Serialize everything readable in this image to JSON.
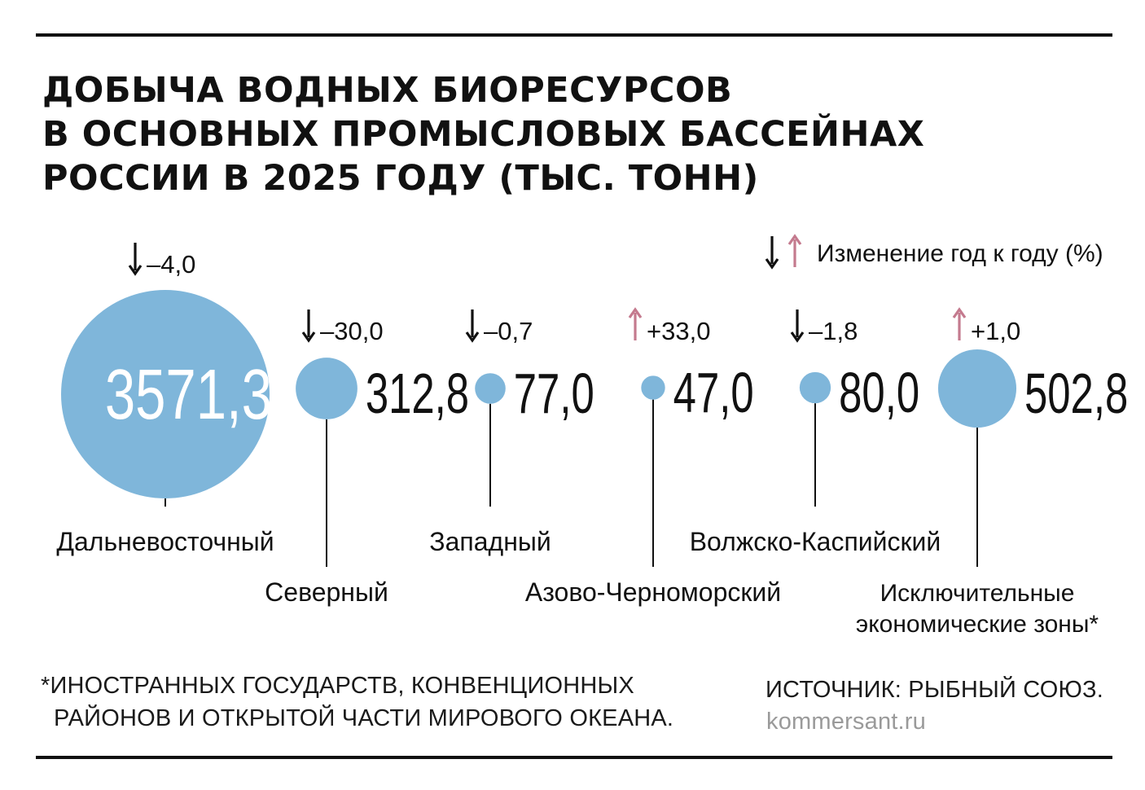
{
  "title": {
    "line1": "ДОБЫЧА ВОДНЫХ БИОРЕСУРСОВ",
    "line2": "В ОСНОВНЫХ ПРОМЫСЛОВЫХ БАССЕЙНАХ",
    "line3": "РОССИИ В 2025 ГОДУ (ТЫС. ТОНН)"
  },
  "legend": {
    "label": "Изменение год к году (%)",
    "down_color": "#111111",
    "up_color": "#c47a8e"
  },
  "colors": {
    "bubble": "#7fb6da",
    "text": "#111111",
    "muted": "#9a9a9a"
  },
  "chart_data": {
    "type": "bubble",
    "unit": "тыс. тонн",
    "categories": [
      "Дальневосточный",
      "Северный",
      "Западный",
      "Азово-Черноморский",
      "Волжско-Каспийский",
      "Исключительные экономические зоны*"
    ],
    "values": [
      3571.3,
      312.8,
      77.0,
      47.0,
      80.0,
      502.8
    ],
    "value_labels": [
      "3571,3",
      "312,8",
      "77,0",
      "47,0",
      "80,0",
      "502,8"
    ],
    "change_pct": [
      -4.0,
      -30.0,
      -0.7,
      33.0,
      -1.8,
      1.0
    ],
    "change_labels": [
      "–4,0",
      "–30,0",
      "–0,7",
      "+33,0",
      "–1,8",
      "+1,0"
    ],
    "category_lines": [
      [
        "Дальневосточный"
      ],
      [
        "Северный"
      ],
      [
        "Западный"
      ],
      [
        "Азово-Черноморский"
      ],
      [
        "Волжско-Каспийский"
      ],
      [
        "Исключительные",
        "экономические зоны*"
      ]
    ]
  },
  "footnote": {
    "line1": "*ИНОСТРАННЫХ ГОСУДАРСТВ, КОНВЕНЦИОННЫХ",
    "line2": "РАЙОНОВ И ОТКРЫТОЙ ЧАСТИ МИРОВОГО ОКЕАНА."
  },
  "source": "ИСТОЧНИК: РЫБНЫЙ СОЮЗ.",
  "site": "kommersant.ru"
}
